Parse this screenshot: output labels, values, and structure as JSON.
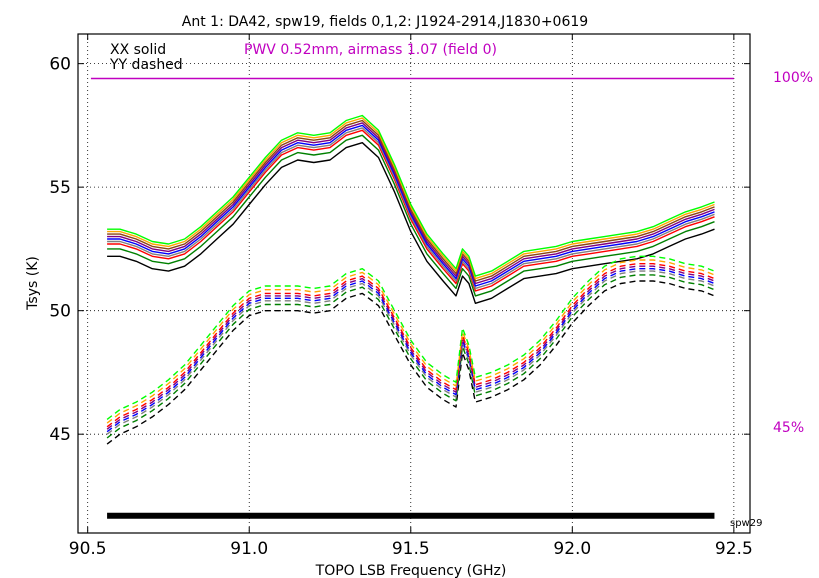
{
  "chart_data": {
    "type": "line",
    "title": "Ant 1: DA42,  spw19,  fields 0,1,2: J1924-2914,J1830+0619",
    "xlabel": "TOPO LSB Frequency (GHz)",
    "ylabel": "Tsys (K)",
    "xlim": [
      90.47,
      92.55
    ],
    "ylim": [
      41.0,
      61.2
    ],
    "xticks": [
      90.5,
      91.0,
      91.5,
      92.0,
      92.5
    ],
    "xtick_labels": [
      "90.5",
      "91.0",
      "91.5",
      "92.0",
      "92.5"
    ],
    "yticks": [
      45,
      50,
      55,
      60
    ],
    "ytick_labels": [
      "45",
      "50",
      "55",
      "60"
    ],
    "grid": true,
    "legend": {
      "position": "top-left",
      "solid_label": "XX solid",
      "dashed_label": "YY dashed"
    },
    "annotation": {
      "text": "PWV 0.52mm, airmass 1.07 (field 0)",
      "color": "#c000c0"
    },
    "transmission": {
      "color": "#c000c0",
      "label_top": "100%",
      "label_bottom": "45%",
      "x": [
        90.51,
        92.5
      ],
      "values": [
        59.4,
        59.4
      ]
    },
    "spw_bar": {
      "label": "spw29",
      "x_range": [
        90.56,
        92.44
      ],
      "y": 41.7,
      "color": "#000000"
    },
    "x": [
      90.56,
      90.6,
      90.65,
      90.7,
      90.75,
      90.8,
      90.85,
      90.9,
      90.95,
      91.0,
      91.05,
      91.1,
      91.15,
      91.2,
      91.25,
      91.3,
      91.35,
      91.4,
      91.45,
      91.5,
      91.55,
      91.6,
      91.64,
      91.66,
      91.68,
      91.7,
      91.75,
      91.8,
      91.85,
      91.9,
      91.95,
      92.0,
      92.05,
      92.1,
      92.15,
      92.2,
      92.25,
      92.3,
      92.35,
      92.4,
      92.44
    ],
    "xx_base": [
      52.2,
      52.2,
      52.0,
      51.7,
      51.6,
      51.8,
      52.3,
      52.9,
      53.5,
      54.3,
      55.1,
      55.8,
      56.1,
      56.0,
      56.1,
      56.6,
      56.8,
      56.2,
      54.8,
      53.2,
      52.0,
      51.2,
      50.6,
      51.4,
      51.1,
      50.3,
      50.5,
      50.9,
      51.3,
      51.4,
      51.5,
      51.7,
      51.8,
      51.9,
      52.0,
      52.1,
      52.3,
      52.6,
      52.9,
      53.1,
      53.3
    ],
    "yy_base": [
      44.6,
      45.0,
      45.3,
      45.7,
      46.2,
      46.8,
      47.6,
      48.4,
      49.2,
      49.8,
      50.0,
      50.0,
      50.0,
      49.9,
      50.0,
      50.5,
      50.7,
      50.2,
      49.0,
      47.8,
      46.9,
      46.4,
      46.1,
      48.3,
      47.6,
      46.3,
      46.5,
      46.8,
      47.2,
      47.8,
      48.6,
      49.5,
      50.2,
      50.8,
      51.1,
      51.2,
      51.2,
      51.1,
      50.9,
      50.8,
      50.6
    ],
    "series": [
      {
        "pol": "XX",
        "color": "#000000",
        "offset": 0.0
      },
      {
        "pol": "XX",
        "color": "#008000",
        "offset": 0.3
      },
      {
        "pol": "XX",
        "color": "#ff0000",
        "offset": 0.5
      },
      {
        "pol": "XX",
        "color": "#808080",
        "offset": 0.6
      },
      {
        "pol": "XX",
        "color": "#0000ff",
        "offset": 0.7
      },
      {
        "pol": "XX",
        "color": "#800080",
        "offset": 0.8
      },
      {
        "pol": "XX",
        "color": "#8b4513",
        "offset": 0.9
      },
      {
        "pol": "XX",
        "color": "#ffa500",
        "offset": 1.0
      },
      {
        "pol": "XX",
        "color": "#00ff00",
        "offset": 1.1
      },
      {
        "pol": "YY",
        "color": "#000000",
        "offset": 0.0
      },
      {
        "pol": "YY",
        "color": "#008000",
        "offset": 0.25
      },
      {
        "pol": "YY",
        "color": "#808080",
        "offset": 0.4
      },
      {
        "pol": "YY",
        "color": "#0000ff",
        "offset": 0.5
      },
      {
        "pol": "YY",
        "color": "#800080",
        "offset": 0.6
      },
      {
        "pol": "YY",
        "color": "#ff0000",
        "offset": 0.7
      },
      {
        "pol": "YY",
        "color": "#ffa500",
        "offset": 0.85
      },
      {
        "pol": "YY",
        "color": "#00ff00",
        "offset": 1.0
      }
    ]
  }
}
